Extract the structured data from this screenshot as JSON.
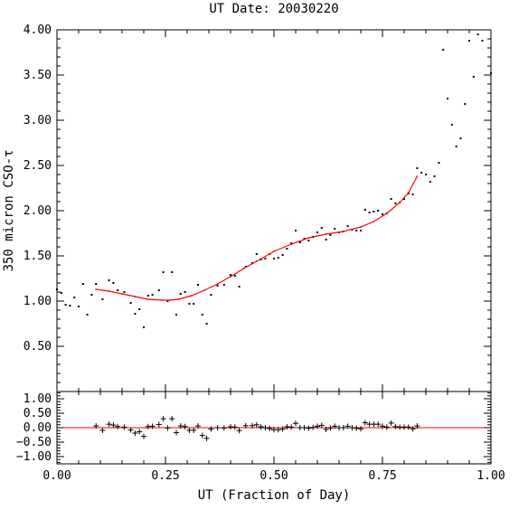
{
  "chart_data": [
    {
      "type": "scatter",
      "title": "UT Date: 20030220",
      "xlabel": "",
      "ylabel": "350 micron CSO-τ",
      "xlim": [
        0,
        1
      ],
      "ylim": [
        0,
        4
      ],
      "grid": false,
      "x_ticks": [
        "0.00",
        "0.25",
        "0.50",
        "0.75",
        "1.00"
      ],
      "y_ticks": [
        {
          "value": 0.5,
          "label": "0.50"
        },
        {
          "value": 1.0,
          "label": "1.00"
        },
        {
          "value": 1.5,
          "label": "1.50"
        },
        {
          "value": 2.0,
          "label": "2.00"
        },
        {
          "value": 2.5,
          "label": "2.50"
        },
        {
          "value": 3.0,
          "label": "3.00"
        },
        {
          "value": 3.5,
          "label": "3.50"
        },
        {
          "value": 4.0,
          "label": "4.00"
        }
      ],
      "series": [
        {
          "marker": "dot",
          "color": "#000000",
          "points": [
            [
              0.0,
              1.13
            ],
            [
              0.01,
              1.09
            ],
            [
              0.02,
              0.96
            ],
            [
              0.03,
              0.95
            ],
            [
              0.04,
              1.04
            ],
            [
              0.05,
              0.94
            ],
            [
              0.06,
              1.19
            ],
            [
              0.07,
              0.85
            ],
            [
              0.08,
              1.07
            ],
            [
              0.09,
              1.19
            ],
            [
              0.105,
              1.02
            ],
            [
              0.12,
              1.23
            ],
            [
              0.13,
              1.2
            ],
            [
              0.14,
              1.12
            ],
            [
              0.155,
              1.1
            ],
            [
              0.17,
              0.98
            ],
            [
              0.18,
              0.86
            ],
            [
              0.19,
              0.91
            ],
            [
              0.2,
              0.71
            ],
            [
              0.21,
              1.06
            ],
            [
              0.22,
              1.07
            ],
            [
              0.235,
              1.12
            ],
            [
              0.245,
              1.32
            ],
            [
              0.255,
              1.0
            ],
            [
              0.265,
              1.32
            ],
            [
              0.275,
              0.85
            ],
            [
              0.285,
              1.08
            ],
            [
              0.295,
              1.1
            ],
            [
              0.305,
              0.97
            ],
            [
              0.315,
              0.97
            ],
            [
              0.325,
              1.18
            ],
            [
              0.335,
              0.85
            ],
            [
              0.345,
              0.75
            ],
            [
              0.355,
              1.07
            ],
            [
              0.37,
              1.17
            ],
            [
              0.385,
              1.18
            ],
            [
              0.4,
              1.29
            ],
            [
              0.41,
              1.28
            ],
            [
              0.42,
              1.16
            ],
            [
              0.435,
              1.38
            ],
            [
              0.45,
              1.42
            ],
            [
              0.46,
              1.52
            ],
            [
              0.47,
              1.46
            ],
            [
              0.48,
              1.47
            ],
            [
              0.49,
              1.52
            ],
            [
              0.5,
              1.47
            ],
            [
              0.51,
              1.48
            ],
            [
              0.52,
              1.51
            ],
            [
              0.53,
              1.58
            ],
            [
              0.54,
              1.64
            ],
            [
              0.55,
              1.78
            ],
            [
              0.56,
              1.65
            ],
            [
              0.57,
              1.69
            ],
            [
              0.58,
              1.67
            ],
            [
              0.59,
              1.71
            ],
            [
              0.6,
              1.76
            ],
            [
              0.61,
              1.81
            ],
            [
              0.62,
              1.68
            ],
            [
              0.63,
              1.73
            ],
            [
              0.64,
              1.8
            ],
            [
              0.65,
              1.76
            ],
            [
              0.66,
              1.77
            ],
            [
              0.67,
              1.83
            ],
            [
              0.68,
              1.79
            ],
            [
              0.69,
              1.78
            ],
            [
              0.7,
              1.78
            ],
            [
              0.71,
              2.01
            ],
            [
              0.72,
              1.98
            ],
            [
              0.73,
              1.99
            ],
            [
              0.74,
              2.0
            ],
            [
              0.75,
              1.96
            ],
            [
              0.76,
              1.97
            ],
            [
              0.77,
              2.13
            ],
            [
              0.78,
              2.08
            ],
            [
              0.79,
              2.09
            ],
            [
              0.8,
              2.13
            ],
            [
              0.81,
              2.19
            ],
            [
              0.82,
              2.18
            ],
            [
              0.83,
              2.47
            ],
            [
              0.84,
              2.42
            ],
            [
              0.85,
              2.4
            ],
            [
              0.86,
              2.32
            ],
            [
              0.87,
              2.38
            ],
            [
              0.88,
              2.53
            ],
            [
              0.89,
              3.78
            ],
            [
              0.9,
              3.24
            ],
            [
              0.91,
              2.95
            ],
            [
              0.92,
              2.71
            ],
            [
              0.93,
              2.8
            ],
            [
              0.94,
              3.18
            ],
            [
              0.95,
              3.88
            ],
            [
              0.96,
              3.48
            ],
            [
              0.97,
              3.95
            ],
            [
              0.98,
              3.88
            ],
            [
              1.0,
              3.52
            ]
          ]
        },
        {
          "marker": "line",
          "color": "#ff0000",
          "points": [
            [
              0.09,
              1.13
            ],
            [
              0.12,
              1.11
            ],
            [
              0.15,
              1.08
            ],
            [
              0.18,
              1.05
            ],
            [
              0.21,
              1.02
            ],
            [
              0.24,
              1.01
            ],
            [
              0.26,
              1.01
            ],
            [
              0.28,
              1.02
            ],
            [
              0.31,
              1.06
            ],
            [
              0.34,
              1.12
            ],
            [
              0.37,
              1.19
            ],
            [
              0.4,
              1.27
            ],
            [
              0.43,
              1.36
            ],
            [
              0.46,
              1.44
            ],
            [
              0.5,
              1.55
            ],
            [
              0.54,
              1.63
            ],
            [
              0.58,
              1.7
            ],
            [
              0.62,
              1.74
            ],
            [
              0.66,
              1.77
            ],
            [
              0.7,
              1.82
            ],
            [
              0.73,
              1.88
            ],
            [
              0.76,
              1.97
            ],
            [
              0.79,
              2.09
            ],
            [
              0.81,
              2.2
            ],
            [
              0.83,
              2.38
            ]
          ]
        }
      ]
    },
    {
      "type": "scatter",
      "title": "",
      "xlabel": "UT (Fraction of Day)",
      "ylabel": "",
      "xlim": [
        0,
        1
      ],
      "ylim": [
        -1.25,
        1.25
      ],
      "grid": false,
      "x_ticks": [
        "0.00",
        "0.25",
        "0.50",
        "0.75",
        "1.00"
      ],
      "y_ticks": [
        {
          "value": 1.0,
          "label": "1.00"
        },
        {
          "value": 0.5,
          "label": "0.50"
        },
        {
          "value": 0.0,
          "label": "0.00"
        },
        {
          "value": -0.5,
          "label": "−0.50"
        },
        {
          "value": -1.0,
          "label": "−1.00"
        }
      ],
      "zero_line": {
        "value": 0,
        "color": "#ff0000"
      },
      "series": [
        {
          "marker": "plus",
          "color": "#000000",
          "points": [
            [
              0.09,
              0.06
            ],
            [
              0.105,
              -0.09
            ],
            [
              0.12,
              0.12
            ],
            [
              0.13,
              0.09
            ],
            [
              0.14,
              0.04
            ],
            [
              0.155,
              0.02
            ],
            [
              0.17,
              -0.08
            ],
            [
              0.18,
              -0.19
            ],
            [
              0.19,
              -0.14
            ],
            [
              0.2,
              -0.3
            ],
            [
              0.21,
              0.04
            ],
            [
              0.22,
              0.05
            ],
            [
              0.235,
              0.11
            ],
            [
              0.245,
              0.31
            ],
            [
              0.255,
              -0.01
            ],
            [
              0.265,
              0.31
            ],
            [
              0.275,
              -0.17
            ],
            [
              0.285,
              0.06
            ],
            [
              0.295,
              0.04
            ],
            [
              0.305,
              -0.09
            ],
            [
              0.315,
              -0.09
            ],
            [
              0.325,
              0.06
            ],
            [
              0.335,
              -0.27
            ],
            [
              0.345,
              -0.37
            ],
            [
              0.355,
              -0.05
            ],
            [
              0.37,
              0.0
            ],
            [
              0.385,
              -0.01
            ],
            [
              0.4,
              0.03
            ],
            [
              0.41,
              0.02
            ],
            [
              0.42,
              -0.1
            ],
            [
              0.435,
              0.07
            ],
            [
              0.45,
              0.07
            ],
            [
              0.46,
              0.1
            ],
            [
              0.47,
              0.03
            ],
            [
              0.48,
              0.0
            ],
            [
              0.49,
              -0.03
            ],
            [
              0.5,
              -0.07
            ],
            [
              0.51,
              -0.07
            ],
            [
              0.52,
              -0.05
            ],
            [
              0.53,
              0.03
            ],
            [
              0.54,
              0.02
            ],
            [
              0.55,
              0.15
            ],
            [
              0.56,
              0.0
            ],
            [
              0.57,
              0.0
            ],
            [
              0.58,
              -0.02
            ],
            [
              0.59,
              0.01
            ],
            [
              0.6,
              0.05
            ],
            [
              0.61,
              0.08
            ],
            [
              0.62,
              -0.06
            ],
            [
              0.63,
              -0.01
            ],
            [
              0.64,
              0.05
            ],
            [
              0.65,
              0.0
            ],
            [
              0.66,
              0.0
            ],
            [
              0.67,
              0.05
            ],
            [
              0.68,
              0.0
            ],
            [
              0.69,
              -0.02
            ],
            [
              0.7,
              -0.04
            ],
            [
              0.71,
              0.17
            ],
            [
              0.72,
              0.12
            ],
            [
              0.73,
              0.12
            ],
            [
              0.74,
              0.12
            ],
            [
              0.75,
              0.05
            ],
            [
              0.76,
              0.02
            ],
            [
              0.77,
              0.16
            ],
            [
              0.78,
              0.04
            ],
            [
              0.79,
              0.02
            ],
            [
              0.8,
              0.02
            ],
            [
              0.81,
              0.02
            ],
            [
              0.82,
              -0.04
            ],
            [
              0.83,
              0.06
            ]
          ]
        }
      ]
    }
  ]
}
